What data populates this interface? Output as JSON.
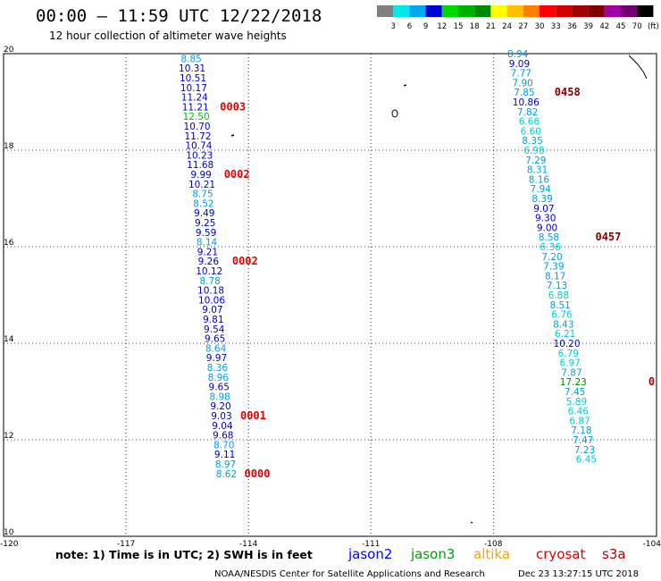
{
  "title": "00:00 – 11:59 UTC 12/22/2018",
  "subtitle": "12 hour collection of altimeter wave heights",
  "note": "note: 1) Time is in UTC; 2) SWH is in feet",
  "footer_left": "NOAA/NESDIS Center for Satellite Applications and Research",
  "footer_right": "Dec 23 13:27:15 UTC 2018",
  "satellites": [
    {
      "name": "jason2",
      "color": "#0000ff"
    },
    {
      "name": "jason3",
      "color": "#00a000"
    },
    {
      "name": "altika",
      "color": "#ffa000"
    },
    {
      "name": "cryosat",
      "color": "#e00000"
    },
    {
      "name": "s3a",
      "color": "#b00000"
    }
  ],
  "color_scale": {
    "labels": [
      "3",
      "6",
      "9",
      "12",
      "15",
      "18",
      "21",
      "24",
      "27",
      "30",
      "33",
      "36",
      "39",
      "42",
      "45",
      "70",
      "(ft)"
    ],
    "colors": [
      "#808080",
      "#00e8e8",
      "#00a8f0",
      "#0000d8",
      "#00d800",
      "#00b000",
      "#008800",
      "#ffff00",
      "#ffc000",
      "#ff8000",
      "#ff0000",
      "#d00000",
      "#a00000",
      "#800000",
      "#a000a0",
      "#700070",
      "#000000"
    ]
  },
  "chart_data": {
    "type": "scatter",
    "title": "00:00 – 11:59 UTC 12/22/2018",
    "subtitle": "12 hour collection of altimeter wave heights",
    "xlim": [
      -120,
      -104
    ],
    "ylim": [
      10,
      20
    ],
    "x_ticks": [
      "-120",
      "-117",
      "-114",
      "-111",
      "-108",
      "-104"
    ],
    "x_tick_values": [
      -120,
      -117,
      -114,
      -111,
      -108,
      -104
    ],
    "y_ticks": [
      "20",
      "18",
      "16",
      "14",
      "12",
      "10"
    ],
    "y_tick_values": [
      20,
      18,
      16,
      14,
      12,
      10
    ],
    "grid": true,
    "series": [
      {
        "points": [
          {
            "x": -115.4,
            "y": 19.9,
            "v": "8.85",
            "c": "#00a0e0"
          },
          {
            "x": -115.38,
            "y": 19.7,
            "v": "10.31",
            "c": "#0000c0"
          },
          {
            "x": -115.36,
            "y": 19.5,
            "v": "10.51",
            "c": "#0000c0"
          },
          {
            "x": -115.34,
            "y": 19.3,
            "v": "10.17",
            "c": "#0000c0"
          },
          {
            "x": -115.32,
            "y": 19.1,
            "v": "11.24",
            "c": "#0000c0"
          },
          {
            "x": -115.3,
            "y": 18.9,
            "v": "11.21",
            "c": "#0000c0"
          },
          {
            "x": -115.28,
            "y": 18.7,
            "v": "12.50",
            "c": "#00c000"
          },
          {
            "x": -115.26,
            "y": 18.5,
            "v": "10.70",
            "c": "#0000c0"
          },
          {
            "x": -115.24,
            "y": 18.3,
            "v": "11.72",
            "c": "#0000c0"
          },
          {
            "x": -115.22,
            "y": 18.1,
            "v": "10.74",
            "c": "#0000c0"
          },
          {
            "x": -115.2,
            "y": 17.9,
            "v": "10.23",
            "c": "#0000c0"
          },
          {
            "x": -115.18,
            "y": 17.7,
            "v": "11.68",
            "c": "#0000c0"
          },
          {
            "x": -115.16,
            "y": 17.5,
            "v": "9.99",
            "c": "#0000c0"
          },
          {
            "x": -115.14,
            "y": 17.3,
            "v": "10.21",
            "c": "#0000c0"
          },
          {
            "x": -115.12,
            "y": 17.1,
            "v": "8.75",
            "c": "#00a0e0"
          },
          {
            "x": -115.1,
            "y": 16.9,
            "v": "8.52",
            "c": "#00a0e0"
          },
          {
            "x": -115.08,
            "y": 16.7,
            "v": "9.49",
            "c": "#0000c0"
          },
          {
            "x": -115.06,
            "y": 16.5,
            "v": "9.25",
            "c": "#0000c0"
          },
          {
            "x": -115.04,
            "y": 16.3,
            "v": "9.59",
            "c": "#0000c0"
          },
          {
            "x": -115.02,
            "y": 16.1,
            "v": "8.14",
            "c": "#00a0e0"
          },
          {
            "x": -115.0,
            "y": 15.9,
            "v": "9.21",
            "c": "#0000c0"
          },
          {
            "x": -114.98,
            "y": 15.7,
            "v": "9.26",
            "c": "#0000c0"
          },
          {
            "x": -114.96,
            "y": 15.5,
            "v": "10.12",
            "c": "#0000c0"
          },
          {
            "x": -114.94,
            "y": 15.3,
            "v": "8.78",
            "c": "#00a0e0"
          },
          {
            "x": -114.92,
            "y": 15.1,
            "v": "10.18",
            "c": "#0000c0"
          },
          {
            "x": -114.9,
            "y": 14.9,
            "v": "10.06",
            "c": "#0000c0"
          },
          {
            "x": -114.88,
            "y": 14.7,
            "v": "9.07",
            "c": "#0000c0"
          },
          {
            "x": -114.86,
            "y": 14.5,
            "v": "9.81",
            "c": "#0000c0"
          },
          {
            "x": -114.84,
            "y": 14.3,
            "v": "9.54",
            "c": "#0000c0"
          },
          {
            "x": -114.82,
            "y": 14.1,
            "v": "9.65",
            "c": "#0000c0"
          },
          {
            "x": -114.8,
            "y": 13.9,
            "v": "8.64",
            "c": "#00a0e0"
          },
          {
            "x": -114.78,
            "y": 13.7,
            "v": "9.97",
            "c": "#0000c0"
          },
          {
            "x": -114.76,
            "y": 13.5,
            "v": "8.36",
            "c": "#00a0e0"
          },
          {
            "x": -114.74,
            "y": 13.3,
            "v": "8.96",
            "c": "#00a0e0"
          },
          {
            "x": -114.72,
            "y": 13.1,
            "v": "9.65",
            "c": "#0000c0"
          },
          {
            "x": -114.7,
            "y": 12.9,
            "v": "8.98",
            "c": "#00a0e0"
          },
          {
            "x": -114.68,
            "y": 12.7,
            "v": "9.20",
            "c": "#0000c0"
          },
          {
            "x": -114.66,
            "y": 12.5,
            "v": "9.03",
            "c": "#0000c0"
          },
          {
            "x": -114.64,
            "y": 12.3,
            "v": "9.04",
            "c": "#0000c0"
          },
          {
            "x": -114.62,
            "y": 12.1,
            "v": "9.68",
            "c": "#0000c0"
          },
          {
            "x": -114.6,
            "y": 11.9,
            "v": "8.70",
            "c": "#00a0e0"
          },
          {
            "x": -114.58,
            "y": 11.7,
            "v": "9.11",
            "c": "#0000c0"
          },
          {
            "x": -114.56,
            "y": 11.5,
            "v": "8.97",
            "c": "#00a0e0"
          },
          {
            "x": -114.54,
            "y": 11.3,
            "v": "8.62",
            "c": "#00a0e0"
          }
        ]
      },
      {
        "points": [
          {
            "x": -107.4,
            "y": 20.0,
            "v": "8.94",
            "c": "#00a0e0"
          },
          {
            "x": -107.36,
            "y": 19.8,
            "v": "9.09",
            "c": "#0000c0"
          },
          {
            "x": -107.32,
            "y": 19.6,
            "v": "7.77",
            "c": "#00a0e0"
          },
          {
            "x": -107.28,
            "y": 19.4,
            "v": "7.90",
            "c": "#00a0e0"
          },
          {
            "x": -107.24,
            "y": 19.2,
            "v": "7.85",
            "c": "#00a0e0"
          },
          {
            "x": -107.2,
            "y": 19.0,
            "v": "10.86",
            "c": "#0000c0"
          },
          {
            "x": -107.16,
            "y": 18.8,
            "v": "7.82",
            "c": "#00a0e0"
          },
          {
            "x": -107.12,
            "y": 18.6,
            "v": "6.66",
            "c": "#00d0d0"
          },
          {
            "x": -107.08,
            "y": 18.4,
            "v": "6.60",
            "c": "#00d0d0"
          },
          {
            "x": -107.04,
            "y": 18.2,
            "v": "8.35",
            "c": "#00a0e0"
          },
          {
            "x": -107.0,
            "y": 18.0,
            "v": "6.98",
            "c": "#00d0d0"
          },
          {
            "x": -106.96,
            "y": 17.8,
            "v": "7.29",
            "c": "#00a0e0"
          },
          {
            "x": -106.92,
            "y": 17.6,
            "v": "8.31",
            "c": "#00a0e0"
          },
          {
            "x": -106.88,
            "y": 17.4,
            "v": "8.16",
            "c": "#00a0e0"
          },
          {
            "x": -106.84,
            "y": 17.2,
            "v": "7.94",
            "c": "#00a0e0"
          },
          {
            "x": -106.8,
            "y": 17.0,
            "v": "8.39",
            "c": "#00a0e0"
          },
          {
            "x": -106.76,
            "y": 16.8,
            "v": "9.07",
            "c": "#0000c0"
          },
          {
            "x": -106.72,
            "y": 16.6,
            "v": "9.30",
            "c": "#0000c0"
          },
          {
            "x": -106.68,
            "y": 16.4,
            "v": "9.00",
            "c": "#0000c0"
          },
          {
            "x": -106.64,
            "y": 16.2,
            "v": "8.58",
            "c": "#00a0e0"
          },
          {
            "x": -106.6,
            "y": 16.0,
            "v": "6.36",
            "c": "#00d0d0"
          },
          {
            "x": -106.56,
            "y": 15.8,
            "v": "7.20",
            "c": "#00a0e0"
          },
          {
            "x": -106.52,
            "y": 15.6,
            "v": "7.39",
            "c": "#00a0e0"
          },
          {
            "x": -106.48,
            "y": 15.4,
            "v": "8.17",
            "c": "#00a0e0"
          },
          {
            "x": -106.44,
            "y": 15.2,
            "v": "7.13",
            "c": "#00a0e0"
          },
          {
            "x": -106.4,
            "y": 15.0,
            "v": "6.88",
            "c": "#00d0d0"
          },
          {
            "x": -106.36,
            "y": 14.8,
            "v": "8.51",
            "c": "#00a0e0"
          },
          {
            "x": -106.32,
            "y": 14.6,
            "v": "6.76",
            "c": "#00d0d0"
          },
          {
            "x": -106.28,
            "y": 14.4,
            "v": "8.43",
            "c": "#00a0e0"
          },
          {
            "x": -106.24,
            "y": 14.2,
            "v": "6.21",
            "c": "#00d0d0"
          },
          {
            "x": -106.2,
            "y": 14.0,
            "v": "10.20",
            "c": "#0000c0"
          },
          {
            "x": -106.16,
            "y": 13.8,
            "v": "6.79",
            "c": "#00d0d0"
          },
          {
            "x": -106.12,
            "y": 13.6,
            "v": "6.97",
            "c": "#00d0d0"
          },
          {
            "x": -106.08,
            "y": 13.4,
            "v": "7.87",
            "c": "#00a0e0"
          },
          {
            "x": -106.04,
            "y": 13.2,
            "v": "17.23",
            "c": "#008800"
          },
          {
            "x": -106.0,
            "y": 13.0,
            "v": "7.45",
            "c": "#00a0e0"
          },
          {
            "x": -105.96,
            "y": 12.8,
            "v": "5.89",
            "c": "#00d0d0"
          },
          {
            "x": -105.92,
            "y": 12.6,
            "v": "6.46",
            "c": "#00d0d0"
          },
          {
            "x": -105.88,
            "y": 12.4,
            "v": "6.87",
            "c": "#00d0d0"
          },
          {
            "x": -105.84,
            "y": 12.2,
            "v": "7.18",
            "c": "#00a0e0"
          },
          {
            "x": -105.8,
            "y": 12.0,
            "v": "7.47",
            "c": "#00a0e0"
          },
          {
            "x": -105.76,
            "y": 11.8,
            "v": "7.23",
            "c": "#00a0e0"
          },
          {
            "x": -105.72,
            "y": 11.6,
            "v": "6.45",
            "c": "#00d0d0"
          }
        ]
      }
    ],
    "time_labels": [
      {
        "text": "0003",
        "x": -114.7,
        "y": 18.9,
        "c": "#e00000"
      },
      {
        "text": "0002",
        "x": -114.6,
        "y": 17.5,
        "c": "#e00000"
      },
      {
        "text": "0002",
        "x": -114.4,
        "y": 15.7,
        "c": "#e00000"
      },
      {
        "text": "0001",
        "x": -114.2,
        "y": 12.5,
        "c": "#e00000"
      },
      {
        "text": "0000",
        "x": -114.1,
        "y": 11.3,
        "c": "#e00000"
      },
      {
        "text": "0458",
        "x": -106.5,
        "y": 19.2,
        "c": "#800000"
      },
      {
        "text": "0457",
        "x": -105.5,
        "y": 16.2,
        "c": "#800000"
      },
      {
        "text": "0",
        "x": -104.2,
        "y": 13.2,
        "c": "#b00000"
      }
    ]
  }
}
